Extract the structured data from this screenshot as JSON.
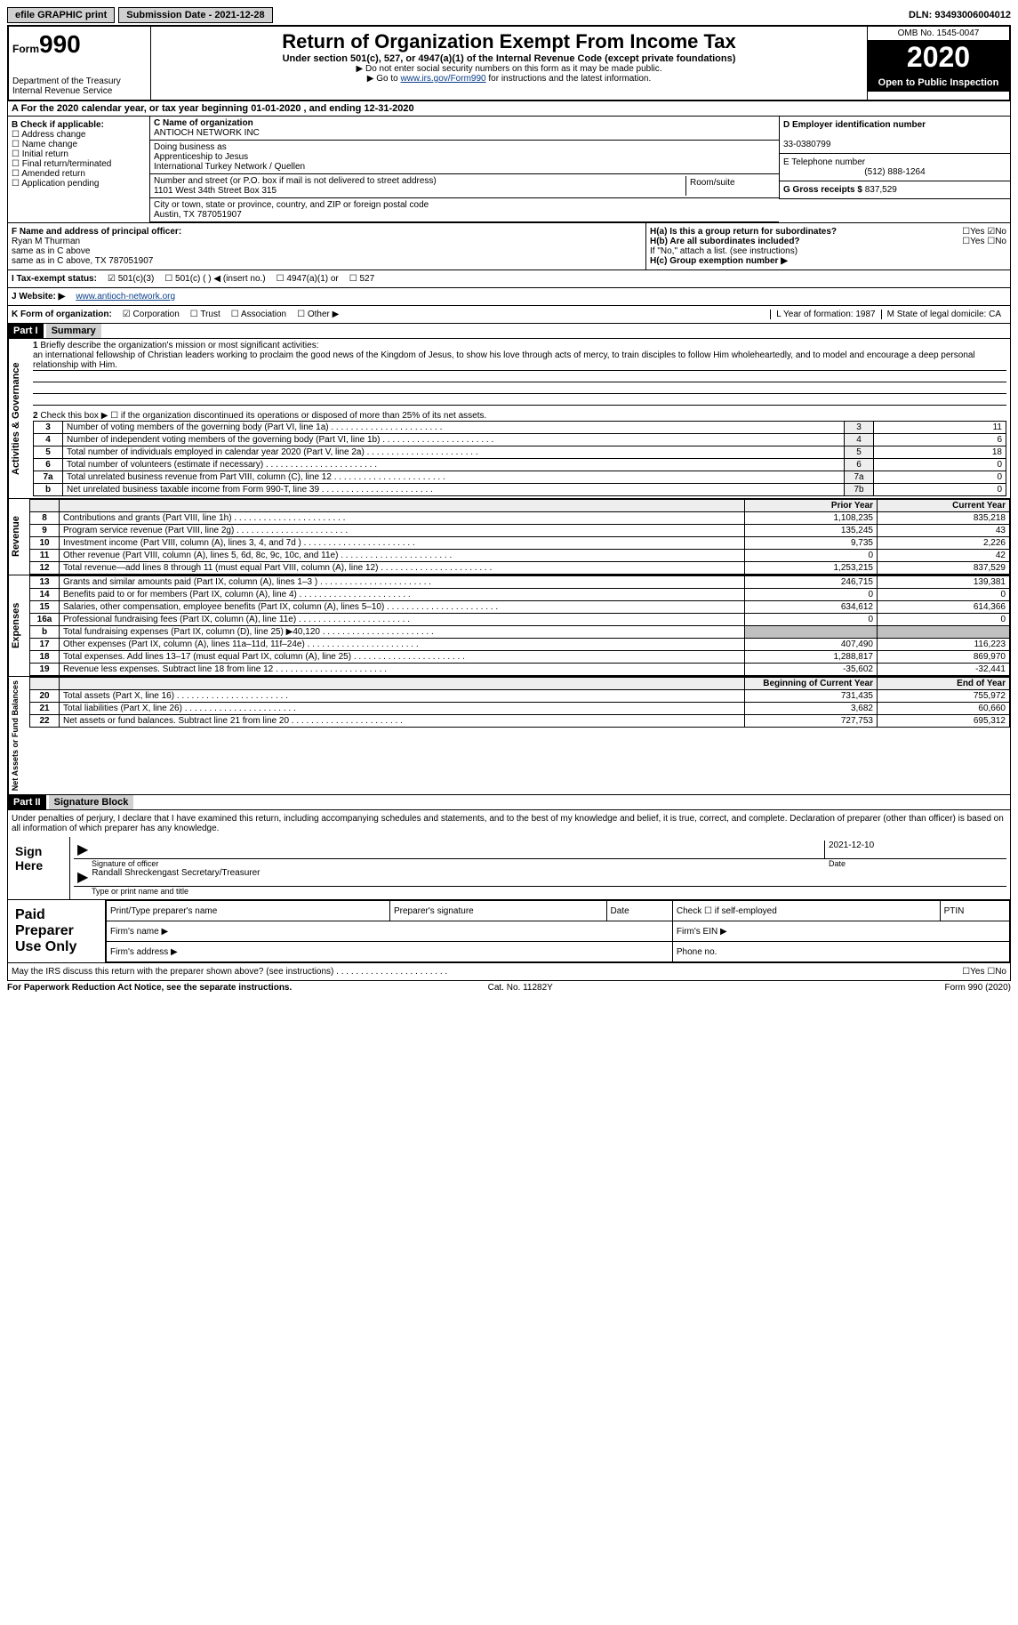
{
  "top": {
    "efile": "efile GRAPHIC print",
    "submission": "Submission Date - 2021-12-28",
    "dln": "DLN: 93493006004012"
  },
  "header": {
    "form_small": "Form",
    "form_big": "990",
    "dept": "Department of the Treasury\nInternal Revenue Service",
    "title": "Return of Organization Exempt From Income Tax",
    "sub": "Under section 501(c), 527, or 4947(a)(1) of the Internal Revenue Code (except private foundations)",
    "note1": "▶ Do not enter social security numbers on this form as it may be made public.",
    "note2_pre": "▶ Go to ",
    "note2_link": "www.irs.gov/Form990",
    "note2_post": " for instructions and the latest information.",
    "omb": "OMB No. 1545-0047",
    "year": "2020",
    "open": "Open to Public Inspection"
  },
  "rowA": "A For the 2020 calendar year, or tax year beginning 01-01-2020  , and ending 12-31-2020",
  "B": {
    "label": "B Check if applicable:",
    "opts": [
      "Address change",
      "Name change",
      "Initial return",
      "Final return/terminated",
      "Amended return",
      "Application pending"
    ]
  },
  "C": {
    "name_lbl": "C Name of organization",
    "name": "ANTIOCH NETWORK INC",
    "dba_lbl": "Doing business as",
    "dba": "Apprenticeship to Jesus\nInternational Turkey Network / Quellen",
    "addr_lbl": "Number and street (or P.O. box if mail is not delivered to street address)",
    "room_lbl": "Room/suite",
    "addr": "1101 West 34th Street Box 315",
    "city_lbl": "City or town, state or province, country, and ZIP or foreign postal code",
    "city": "Austin, TX  787051907"
  },
  "D": {
    "ein_lbl": "D Employer identification number",
    "ein": "33-0380799",
    "tel_lbl": "E Telephone number",
    "tel": "(512) 888-1264",
    "gross_lbl": "G Gross receipts $",
    "gross": "837,529"
  },
  "F": {
    "lbl": "F Name and address of principal officer:",
    "name": "Ryan M Thurman",
    "l2": "same as in C above",
    "l3": "same as in C above, TX  787051907"
  },
  "H": {
    "a": "H(a)  Is this a group return for subordinates?",
    "b": "H(b)  Are all subordinates included?",
    "bnote": "If \"No,\" attach a list. (see instructions)",
    "c": "H(c)  Group exemption number ▶",
    "yes": "Yes",
    "no": "No"
  },
  "I": {
    "lbl": "I    Tax-exempt status:",
    "o1": "501(c)(3)",
    "o2": "501(c) (  ) ◀ (insert no.)",
    "o3": "4947(a)(1) or",
    "o4": "527"
  },
  "J": {
    "lbl": "J   Website: ▶",
    "val": "www.antioch-network.org"
  },
  "K": {
    "lbl": "K Form of organization:",
    "o1": "Corporation",
    "o2": "Trust",
    "o3": "Association",
    "o4": "Other ▶",
    "L": "L Year of formation: 1987",
    "M": "M State of legal domicile: CA"
  },
  "part1": {
    "hdr": "Part I",
    "title": "Summary"
  },
  "gov": {
    "tab": "Activities & Governance",
    "l1": "Briefly describe the organization's mission or most significant activities:",
    "l1v": "an international fellowship of Christian leaders working to proclaim the good news of the Kingdom of Jesus, to show his love through acts of mercy, to train disciples to follow Him wholeheartedly, and to model and encourage a deep personal relationship with Him.",
    "l2": "Check this box ▶ ☐ if the organization discontinued its operations or disposed of more than 25% of its net assets.",
    "rows": [
      {
        "n": "3",
        "t": "Number of voting members of the governing body (Part VI, line 1a)",
        "b": "3",
        "v": "11"
      },
      {
        "n": "4",
        "t": "Number of independent voting members of the governing body (Part VI, line 1b)",
        "b": "4",
        "v": "6"
      },
      {
        "n": "5",
        "t": "Total number of individuals employed in calendar year 2020 (Part V, line 2a)",
        "b": "5",
        "v": "18"
      },
      {
        "n": "6",
        "t": "Total number of volunteers (estimate if necessary)",
        "b": "6",
        "v": "0"
      },
      {
        "n": "7a",
        "t": "Total unrelated business revenue from Part VIII, column (C), line 12",
        "b": "7a",
        "v": "0"
      },
      {
        "n": "b",
        "t": "Net unrelated business taxable income from Form 990-T, line 39",
        "b": "7b",
        "v": "0"
      }
    ]
  },
  "rev": {
    "tab": "Revenue",
    "h1": "Prior Year",
    "h2": "Current Year",
    "rows": [
      {
        "n": "8",
        "t": "Contributions and grants (Part VIII, line 1h)",
        "p": "1,108,235",
        "c": "835,218"
      },
      {
        "n": "9",
        "t": "Program service revenue (Part VIII, line 2g)",
        "p": "135,245",
        "c": "43"
      },
      {
        "n": "10",
        "t": "Investment income (Part VIII, column (A), lines 3, 4, and 7d )",
        "p": "9,735",
        "c": "2,226"
      },
      {
        "n": "11",
        "t": "Other revenue (Part VIII, column (A), lines 5, 6d, 8c, 9c, 10c, and 11e)",
        "p": "0",
        "c": "42"
      },
      {
        "n": "12",
        "t": "Total revenue—add lines 8 through 11 (must equal Part VIII, column (A), line 12)",
        "p": "1,253,215",
        "c": "837,529"
      }
    ]
  },
  "exp": {
    "tab": "Expenses",
    "rows": [
      {
        "n": "13",
        "t": "Grants and similar amounts paid (Part IX, column (A), lines 1–3 )",
        "p": "246,715",
        "c": "139,381"
      },
      {
        "n": "14",
        "t": "Benefits paid to or for members (Part IX, column (A), line 4)",
        "p": "0",
        "c": "0"
      },
      {
        "n": "15",
        "t": "Salaries, other compensation, employee benefits (Part IX, column (A), lines 5–10)",
        "p": "634,612",
        "c": "614,366"
      },
      {
        "n": "16a",
        "t": "Professional fundraising fees (Part IX, column (A), line 11e)",
        "p": "0",
        "c": "0"
      },
      {
        "n": "b",
        "t": "Total fundraising expenses (Part IX, column (D), line 25) ▶40,120",
        "p": "",
        "c": ""
      },
      {
        "n": "17",
        "t": "Other expenses (Part IX, column (A), lines 11a–11d, 11f–24e)",
        "p": "407,490",
        "c": "116,223"
      },
      {
        "n": "18",
        "t": "Total expenses. Add lines 13–17 (must equal Part IX, column (A), line 25)",
        "p": "1,288,817",
        "c": "869,970"
      },
      {
        "n": "19",
        "t": "Revenue less expenses. Subtract line 18 from line 12",
        "p": "-35,602",
        "c": "-32,441"
      }
    ]
  },
  "net": {
    "tab": "Net Assets or Fund Balances",
    "h1": "Beginning of Current Year",
    "h2": "End of Year",
    "rows": [
      {
        "n": "20",
        "t": "Total assets (Part X, line 16)",
        "p": "731,435",
        "c": "755,972"
      },
      {
        "n": "21",
        "t": "Total liabilities (Part X, line 26)",
        "p": "3,682",
        "c": "60,660"
      },
      {
        "n": "22",
        "t": "Net assets or fund balances. Subtract line 21 from line 20",
        "p": "727,753",
        "c": "695,312"
      }
    ]
  },
  "part2": {
    "hdr": "Part II",
    "title": "Signature Block"
  },
  "sig": {
    "decl": "Under penalties of perjury, I declare that I have examined this return, including accompanying schedules and statements, and to the best of my knowledge and belief, it is true, correct, and complete. Declaration of preparer (other than officer) is based on all information of which preparer has any knowledge.",
    "sign_here": "Sign Here",
    "sig_officer": "Signature of officer",
    "date": "2021-12-10",
    "date_lbl": "Date",
    "name": "Randall Shreckengast Secretary/Treasurer",
    "name_lbl": "Type or print name and title",
    "paid": "Paid Preparer Use Only",
    "p1": "Print/Type preparer's name",
    "p2": "Preparer's signature",
    "p3": "Date",
    "p4": "Check ☐ if self-employed",
    "p5": "PTIN",
    "p6": "Firm's name  ▶",
    "p7": "Firm's EIN ▶",
    "p8": "Firm's address ▶",
    "p9": "Phone no.",
    "discuss": "May the IRS discuss this return with the preparer shown above? (see instructions)"
  },
  "footer": {
    "l": "For Paperwork Reduction Act Notice, see the separate instructions.",
    "m": "Cat. No. 11282Y",
    "r": "Form 990 (2020)"
  }
}
